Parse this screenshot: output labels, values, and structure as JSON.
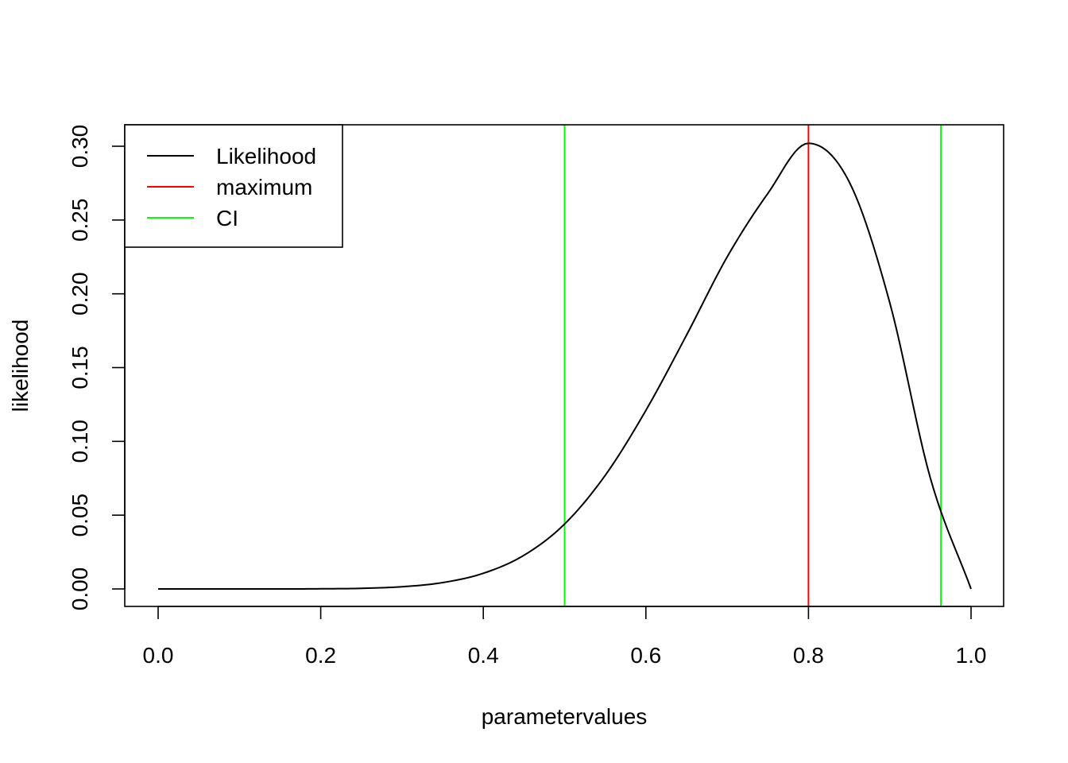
{
  "chart_data": {
    "type": "line",
    "title": "",
    "xlabel": "parametervalues",
    "ylabel": "likelihood",
    "xlim": [
      0.0,
      1.0
    ],
    "ylim": [
      0.0,
      0.3
    ],
    "x_ticks": [
      "0.0",
      "0.2",
      "0.4",
      "0.6",
      "0.8",
      "1.0"
    ],
    "y_ticks": [
      "0.00",
      "0.05",
      "0.10",
      "0.15",
      "0.20",
      "0.25",
      "0.30"
    ],
    "grid": false,
    "legend_position": "top-left",
    "series": [
      {
        "name": "Likelihood",
        "color": "#000000",
        "x": [
          0.0,
          0.05,
          0.1,
          0.15,
          0.2,
          0.25,
          0.3,
          0.35,
          0.4,
          0.45,
          0.5,
          0.55,
          0.6,
          0.65,
          0.7,
          0.75,
          0.8,
          0.85,
          0.9,
          0.95,
          1.0
        ],
        "y": [
          0.0,
          0.0,
          0.0,
          0.0,
          0.0001,
          0.0004,
          0.0015,
          0.0043,
          0.0106,
          0.0228,
          0.044,
          0.077,
          0.121,
          0.172,
          0.225,
          0.268,
          0.302,
          0.276,
          0.194,
          0.075,
          0.0
        ]
      },
      {
        "name": "maximum",
        "color": "#ff0000",
        "kind": "vline",
        "x": [
          0.8
        ]
      },
      {
        "name": "CI",
        "color": "#00ff00",
        "kind": "vline",
        "x": [
          0.5,
          0.963
        ]
      }
    ]
  }
}
